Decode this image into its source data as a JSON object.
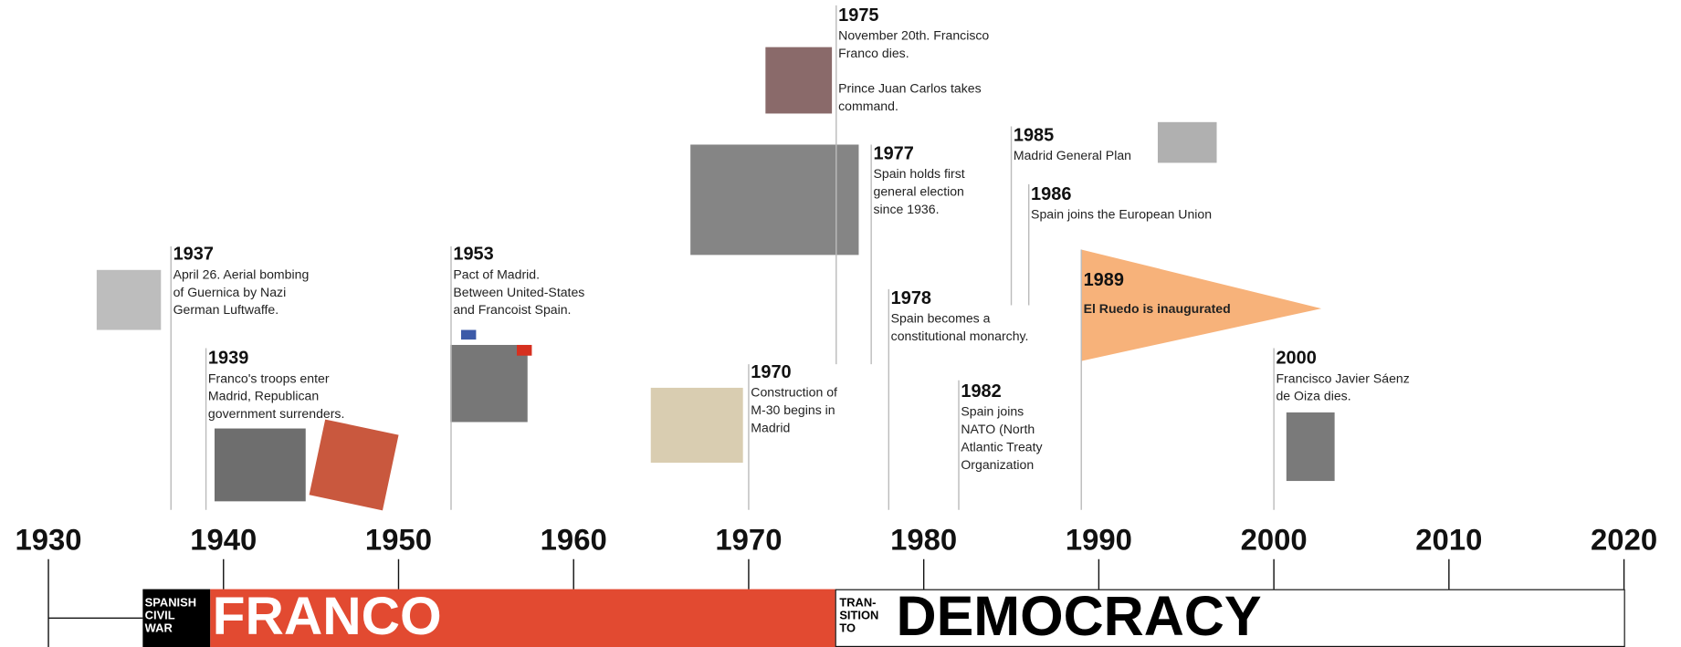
{
  "axis": {
    "ticks": [
      "1930",
      "1940",
      "1950",
      "1960",
      "1970",
      "1980",
      "1990",
      "2000",
      "2010",
      "2020"
    ]
  },
  "periods": [
    {
      "label": [
        "SPANISH",
        "CIVIL",
        "WAR"
      ]
    },
    {
      "label": [
        "FRANCO"
      ]
    },
    {
      "label": [
        "TRAN-",
        "SITION",
        "TO"
      ]
    },
    {
      "label": [
        "DEMOCRACY"
      ]
    }
  ],
  "events": [
    {
      "year": "1937",
      "paragraphs": [
        [
          "April 26. Aerial bombing",
          "of Guernica by Nazi",
          "German Luftwaffe."
        ]
      ]
    },
    {
      "year": "1939",
      "paragraphs": [
        [
          "Franco's troops enter",
          "Madrid, Republican",
          "government surrenders."
        ]
      ]
    },
    {
      "year": "1953",
      "paragraphs": [
        [
          "Pact of Madrid.",
          "Between United-States",
          "and Francoist Spain."
        ]
      ]
    },
    {
      "year": "1970",
      "paragraphs": [
        [
          "Construction of",
          "M-30 begins in",
          "Madrid"
        ]
      ]
    },
    {
      "year": "1975",
      "paragraphs": [
        [
          "November 20th. Francisco",
          "Franco dies."
        ],
        [
          "Prince Juan Carlos takes",
          "command."
        ]
      ]
    },
    {
      "year": "1977",
      "paragraphs": [
        [
          "Spain holds first",
          "general election",
          "since 1936."
        ]
      ]
    },
    {
      "year": "1978",
      "paragraphs": [
        [
          "Spain becomes a",
          "constitutional monarchy."
        ]
      ]
    },
    {
      "year": "1982",
      "paragraphs": [
        [
          "Spain joins",
          "NATO (North",
          "Atlantic Treaty",
          "Organization"
        ]
      ]
    },
    {
      "year": "1985",
      "paragraphs": [
        [
          "Madrid General Plan"
        ]
      ]
    },
    {
      "year": "1986",
      "paragraphs": [
        [
          "Spain joins the European Union"
        ]
      ]
    },
    {
      "year": "1989",
      "paragraphs": [
        [
          "El Ruedo is inaugurated"
        ]
      ]
    },
    {
      "year": "2000",
      "paragraphs": [
        [
          "Francisco Javier Sáenz",
          "de Oiza dies."
        ]
      ]
    }
  ]
}
